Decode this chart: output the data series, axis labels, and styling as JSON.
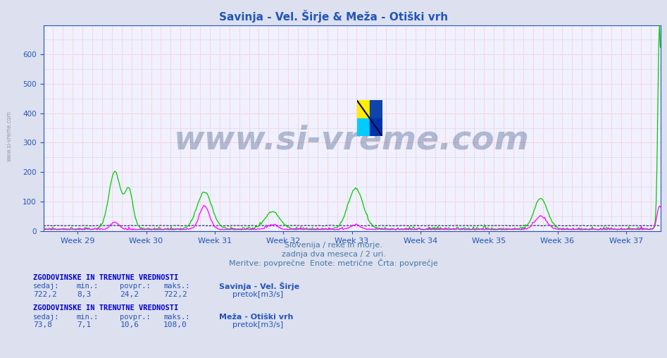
{
  "title": "Savinja - Vel. Širje & Meža - Otiški vrh",
  "title_color": "#2255bb",
  "bg_color": "#dde0ee",
  "plot_bg_color": "#f0f0ff",
  "y_min": 0,
  "y_max": 700,
  "y_ticks": [
    0,
    100,
    200,
    300,
    400,
    500,
    600
  ],
  "weeks": [
    "Week 29",
    "Week 30",
    "Week 31",
    "Week 32",
    "Week 33",
    "Week 34",
    "Week 35",
    "Week 36",
    "Week 37"
  ],
  "n_points": 744,
  "color_green": "#00cc00",
  "color_magenta": "#ff00ff",
  "color_dark": "#000044",
  "color_darkgreen": "#008800",
  "watermark_text": "www.si-vreme.com",
  "watermark_color": "#1a3a6a",
  "watermark_alpha": 0.3,
  "footer_lines": [
    "Slovenija / reke in morje.",
    "zadnja dva meseca / 2 uri.",
    "Meritve: povprečne  Enote: metrične  Črta: povprečje"
  ],
  "footer_color": "#4477aa",
  "legend1_title": "Savinja - Vel. Širje",
  "legend2_title": "Meža - Otiški vrh",
  "stats1_label": "ZGODOVINSKE IN TRENUTNE VREDNOSTI",
  "stats1_sedaj": "722,2",
  "stats1_min": "8,3",
  "stats1_povpr": "24,2",
  "stats1_maks": "722,2",
  "stats2_label": "ZGODOVINSKE IN TRENUTNE VREDNOSTI",
  "stats2_sedaj": "73,8",
  "stats2_min": "7,1",
  "stats2_povpr": "10,6",
  "stats2_maks": "108,0",
  "stats_color": "#2255bb",
  "stats_header_color": "#0000cc",
  "side_watermark": "www.si-vreme.com"
}
